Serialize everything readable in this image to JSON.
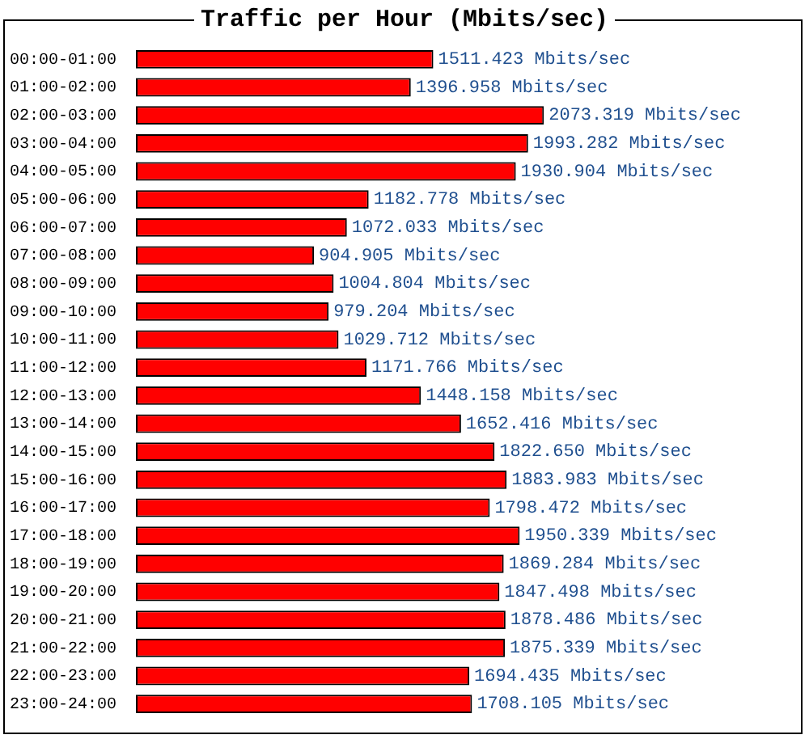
{
  "chart_data": {
    "type": "bar",
    "orientation": "horizontal",
    "title": "Traffic per Hour (Mbits/sec)",
    "color": "#ff0000",
    "categories": [
      "00:00-01:00",
      "01:00-02:00",
      "02:00-03:00",
      "03:00-04:00",
      "04:00-05:00",
      "05:00-06:00",
      "06:00-07:00",
      "07:00-08:00",
      "08:00-09:00",
      "09:00-10:00",
      "10:00-11:00",
      "11:00-12:00",
      "12:00-13:00",
      "13:00-14:00",
      "14:00-15:00",
      "15:00-16:00",
      "16:00-17:00",
      "17:00-18:00",
      "18:00-19:00",
      "19:00-20:00",
      "20:00-21:00",
      "21:00-22:00",
      "22:00-23:00",
      "23:00-24:00"
    ],
    "values": [
      1511.423,
      1396.958,
      2073.319,
      1993.282,
      1930.904,
      1182.778,
      1072.033,
      904.905,
      1004.804,
      979.204,
      1029.712,
      1171.766,
      1448.158,
      1652.416,
      1822.65,
      1883.983,
      1798.472,
      1950.339,
      1869.284,
      1847.498,
      1878.486,
      1875.339,
      1694.435,
      1708.105
    ],
    "value_labels": [
      "1511.423 Mbits/sec",
      "1396.958 Mbits/sec",
      "2073.319 Mbits/sec",
      "1993.282 Mbits/sec",
      "1930.904 Mbits/sec",
      "1182.778 Mbits/sec",
      "1072.033 Mbits/sec",
      "904.905 Mbits/sec",
      "1004.804 Mbits/sec",
      "979.204 Mbits/sec",
      "1029.712 Mbits/sec",
      "1171.766 Mbits/sec",
      "1448.158 Mbits/sec",
      "1652.416 Mbits/sec",
      "1822.650 Mbits/sec",
      "1883.983 Mbits/sec",
      "1798.472 Mbits/sec",
      "1950.339 Mbits/sec",
      "1869.284 Mbits/sec",
      "1847.498 Mbits/sec",
      "1878.486 Mbits/sec",
      "1875.339 Mbits/sec",
      "1694.435 Mbits/sec",
      "1708.105 Mbits/sec"
    ]
  }
}
